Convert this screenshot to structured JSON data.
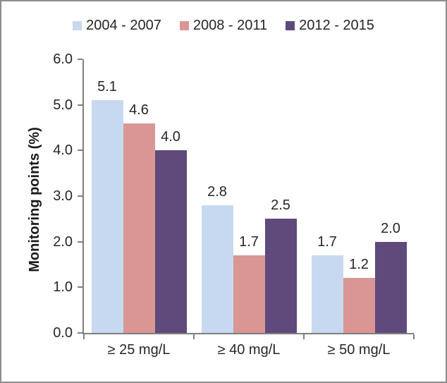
{
  "chart_data": {
    "type": "bar",
    "title": "",
    "categories": [
      "≥ 25 mg/L",
      "≥ 40 mg/L",
      "≥ 50 mg/L"
    ],
    "series": [
      {
        "name": "2004 - 2007",
        "color": "#c7d9f0",
        "values": [
          5.1,
          2.8,
          1.7
        ]
      },
      {
        "name": "2008 - 2011",
        "color": "#d99694",
        "values": [
          4.6,
          1.7,
          1.2
        ]
      },
      {
        "name": "2012 - 2015",
        "color": "#5f4a7b",
        "values": [
          4.0,
          2.5,
          2.0
        ]
      }
    ],
    "xlabel": "",
    "ylabel": "Monitoring points (%)",
    "ylim": [
      0,
      6
    ],
    "ytick_labels": [
      "0.0",
      "1.0",
      "2.0",
      "3.0",
      "4.0",
      "5.0",
      "6.0"
    ],
    "grid": false,
    "legend_position": "top",
    "data_labels": true,
    "data_label_format": "one-decimal"
  },
  "style": {
    "axis_color": "#7f7f7f",
    "text_color": "#262626",
    "frame_border_color": "#8e8e8e",
    "background": "#ffffff"
  }
}
